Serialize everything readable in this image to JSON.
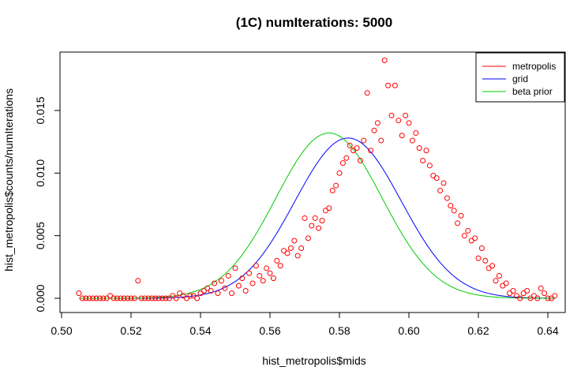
{
  "chart_data": {
    "type": "scatter",
    "title": "(1C) numIterations:  5000",
    "xlabel": "hist_metropolis$mids",
    "ylabel": "hist_metropolis$counts/numIterations",
    "xlim": [
      0.5,
      0.64
    ],
    "ylim": [
      0.0,
      0.019
    ],
    "x_ticks": [
      "0.50",
      "0.52",
      "0.54",
      "0.56",
      "0.58",
      "0.60",
      "0.62",
      "0.64"
    ],
    "y_ticks": [
      "0.000",
      "0.005",
      "0.010",
      "0.015"
    ],
    "grid": false,
    "legend_position": "top-right",
    "legend": [
      {
        "label": "metropolis",
        "color": "#ff0000"
      },
      {
        "label": "grid",
        "color": "#0000ff"
      },
      {
        "label": "beta prior",
        "color": "#00cc00"
      }
    ],
    "series": [
      {
        "name": "metropolis",
        "type": "scatter",
        "color": "#ff0000",
        "points": [
          [
            0.505,
            0.0004
          ],
          [
            0.506,
            0.0
          ],
          [
            0.507,
            0.0
          ],
          [
            0.508,
            0.0
          ],
          [
            0.509,
            0.0
          ],
          [
            0.51,
            0.0
          ],
          [
            0.511,
            0.0
          ],
          [
            0.512,
            0.0
          ],
          [
            0.513,
            0.0
          ],
          [
            0.514,
            0.0002
          ],
          [
            0.515,
            0.0
          ],
          [
            0.516,
            0.0
          ],
          [
            0.517,
            0.0
          ],
          [
            0.518,
            0.0
          ],
          [
            0.519,
            0.0
          ],
          [
            0.52,
            0.0
          ],
          [
            0.521,
            0.0
          ],
          [
            0.522,
            0.0014
          ],
          [
            0.523,
            0.0
          ],
          [
            0.524,
            0.0
          ],
          [
            0.525,
            0.0
          ],
          [
            0.526,
            0.0
          ],
          [
            0.527,
            0.0
          ],
          [
            0.528,
            0.0
          ],
          [
            0.529,
            0.0
          ],
          [
            0.53,
            0.0
          ],
          [
            0.531,
            0.0
          ],
          [
            0.532,
            0.0002
          ],
          [
            0.533,
            0.0
          ],
          [
            0.534,
            0.0004
          ],
          [
            0.535,
            0.0002
          ],
          [
            0.536,
            0.0
          ],
          [
            0.537,
            0.0002
          ],
          [
            0.538,
            0.0002
          ],
          [
            0.539,
            0.0
          ],
          [
            0.54,
            0.0004
          ],
          [
            0.541,
            0.0006
          ],
          [
            0.542,
            0.0008
          ],
          [
            0.543,
            0.0006
          ],
          [
            0.544,
            0.0012
          ],
          [
            0.545,
            0.0004
          ],
          [
            0.546,
            0.0014
          ],
          [
            0.547,
            0.0008
          ],
          [
            0.548,
            0.0018
          ],
          [
            0.549,
            0.0004
          ],
          [
            0.55,
            0.0024
          ],
          [
            0.551,
            0.001
          ],
          [
            0.552,
            0.0016
          ],
          [
            0.553,
            0.0006
          ],
          [
            0.554,
            0.002
          ],
          [
            0.555,
            0.0012
          ],
          [
            0.556,
            0.0026
          ],
          [
            0.557,
            0.0018
          ],
          [
            0.558,
            0.0014
          ],
          [
            0.559,
            0.0024
          ],
          [
            0.56,
            0.002
          ],
          [
            0.561,
            0.0016
          ],
          [
            0.562,
            0.003
          ],
          [
            0.563,
            0.0026
          ],
          [
            0.564,
            0.0038
          ],
          [
            0.565,
            0.0036
          ],
          [
            0.566,
            0.004
          ],
          [
            0.567,
            0.0046
          ],
          [
            0.568,
            0.0034
          ],
          [
            0.569,
            0.004
          ],
          [
            0.57,
            0.0064
          ],
          [
            0.571,
            0.0048
          ],
          [
            0.572,
            0.0058
          ],
          [
            0.573,
            0.0064
          ],
          [
            0.574,
            0.0056
          ],
          [
            0.575,
            0.0062
          ],
          [
            0.576,
            0.007
          ],
          [
            0.577,
            0.0072
          ],
          [
            0.578,
            0.0086
          ],
          [
            0.579,
            0.009
          ],
          [
            0.58,
            0.01
          ],
          [
            0.581,
            0.0108
          ],
          [
            0.582,
            0.0112
          ],
          [
            0.583,
            0.0122
          ],
          [
            0.584,
            0.0118
          ],
          [
            0.585,
            0.012
          ],
          [
            0.586,
            0.011
          ],
          [
            0.587,
            0.0126
          ],
          [
            0.588,
            0.0164
          ],
          [
            0.589,
            0.0118
          ],
          [
            0.59,
            0.0134
          ],
          [
            0.591,
            0.014
          ],
          [
            0.592,
            0.0126
          ],
          [
            0.593,
            0.019
          ],
          [
            0.594,
            0.017
          ],
          [
            0.595,
            0.0146
          ],
          [
            0.596,
            0.017
          ],
          [
            0.597,
            0.0142
          ],
          [
            0.598,
            0.013
          ],
          [
            0.599,
            0.0146
          ],
          [
            0.6,
            0.014
          ],
          [
            0.601,
            0.0126
          ],
          [
            0.602,
            0.0132
          ],
          [
            0.603,
            0.012
          ],
          [
            0.604,
            0.011
          ],
          [
            0.605,
            0.0118
          ],
          [
            0.606,
            0.0106
          ],
          [
            0.607,
            0.0098
          ],
          [
            0.608,
            0.0096
          ],
          [
            0.609,
            0.0086
          ],
          [
            0.61,
            0.0092
          ],
          [
            0.611,
            0.008
          ],
          [
            0.612,
            0.0074
          ],
          [
            0.613,
            0.007
          ],
          [
            0.614,
            0.006
          ],
          [
            0.615,
            0.0066
          ],
          [
            0.616,
            0.005
          ],
          [
            0.617,
            0.0054
          ],
          [
            0.618,
            0.0046
          ],
          [
            0.619,
            0.0048
          ],
          [
            0.62,
            0.0032
          ],
          [
            0.621,
            0.004
          ],
          [
            0.622,
            0.003
          ],
          [
            0.623,
            0.0024
          ],
          [
            0.624,
            0.0026
          ],
          [
            0.625,
            0.0014
          ],
          [
            0.626,
            0.0018
          ],
          [
            0.627,
            0.001
          ],
          [
            0.628,
            0.0012
          ],
          [
            0.629,
            0.0004
          ],
          [
            0.63,
            0.0006
          ],
          [
            0.631,
            0.0002
          ],
          [
            0.632,
            0.0
          ],
          [
            0.633,
            0.0004
          ],
          [
            0.634,
            0.0006
          ],
          [
            0.635,
            0.0
          ],
          [
            0.636,
            0.0002
          ],
          [
            0.637,
            0.0
          ],
          [
            0.638,
            0.0008
          ],
          [
            0.639,
            0.0004
          ],
          [
            0.64,
            0.0
          ],
          [
            0.641,
            0.0
          ],
          [
            0.642,
            0.0002
          ]
        ]
      },
      {
        "name": "grid",
        "type": "line",
        "color": "#0000ff",
        "mean": 0.5825,
        "sd": 0.0153,
        "peak": 0.0128
      },
      {
        "name": "beta prior",
        "type": "line",
        "color": "#00cc00",
        "mean": 0.577,
        "sd": 0.0153,
        "peak": 0.0132
      }
    ]
  }
}
